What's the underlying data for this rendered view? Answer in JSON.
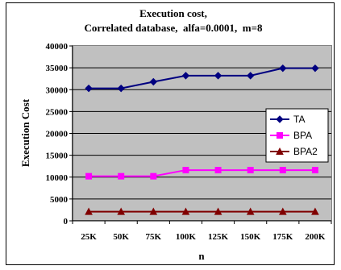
{
  "chart_data": {
    "type": "line",
    "title": "Execution cost,",
    "subtitle": "Correlated database,  alfa=0.0001,  m=8",
    "xlabel": "n",
    "ylabel": "Execution Cost",
    "categories": [
      "25K",
      "50K",
      "75K",
      "100K",
      "125K",
      "150K",
      "175K",
      "200K"
    ],
    "ylim": [
      0,
      40000
    ],
    "yticks": [
      0,
      5000,
      10000,
      15000,
      20000,
      25000,
      30000,
      35000,
      40000
    ],
    "grid": true,
    "legend_position": "right",
    "series": [
      {
        "name": "TA",
        "color": "#000080",
        "marker": "diamond",
        "values": [
          30300,
          30300,
          31800,
          33200,
          33200,
          33200,
          34900,
          34900
        ]
      },
      {
        "name": "BPA",
        "color": "#ff00ff",
        "marker": "square",
        "values": [
          10200,
          10200,
          10200,
          11600,
          11600,
          11600,
          11600,
          11600
        ]
      },
      {
        "name": "BPA2",
        "color": "#800000",
        "marker": "triangle",
        "values": [
          2100,
          2100,
          2100,
          2100,
          2100,
          2100,
          2100,
          2100
        ]
      }
    ]
  }
}
